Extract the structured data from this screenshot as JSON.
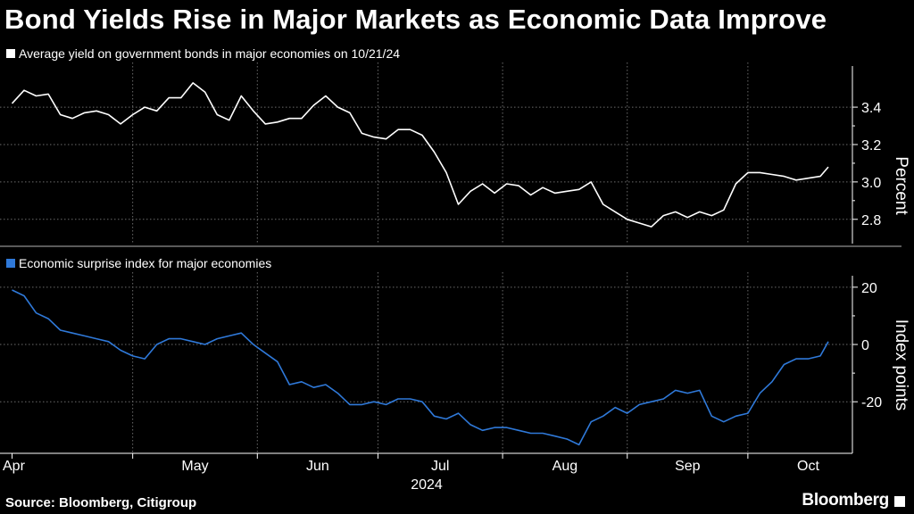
{
  "chart_data": [
    {
      "type": "line",
      "title": "Bond Yields Rise in Major Markets as Economic Data Improve",
      "legend": "Average yield on government bonds in major economies on 10/21/24",
      "ylabel": "Percent",
      "ylim": [
        2.67,
        3.62
      ],
      "yticks": [
        2.8,
        3.0,
        3.2,
        3.4
      ],
      "ytick_labels": [
        "2.8",
        "3.0",
        "3.2",
        "3.4"
      ],
      "color": "#ffffff",
      "x": [
        "2024-04-01",
        "2024-04-04",
        "2024-04-07",
        "2024-04-10",
        "2024-04-13",
        "2024-04-16",
        "2024-04-19",
        "2024-04-22",
        "2024-04-25",
        "2024-04-28",
        "2024-05-01",
        "2024-05-04",
        "2024-05-07",
        "2024-05-10",
        "2024-05-13",
        "2024-05-16",
        "2024-05-19",
        "2024-05-22",
        "2024-05-25",
        "2024-05-28",
        "2024-05-31",
        "2024-06-03",
        "2024-06-06",
        "2024-06-09",
        "2024-06-12",
        "2024-06-15",
        "2024-06-18",
        "2024-06-21",
        "2024-06-24",
        "2024-06-27",
        "2024-06-30",
        "2024-07-03",
        "2024-07-06",
        "2024-07-09",
        "2024-07-12",
        "2024-07-15",
        "2024-07-18",
        "2024-07-21",
        "2024-07-24",
        "2024-07-27",
        "2024-07-30",
        "2024-08-02",
        "2024-08-05",
        "2024-08-08",
        "2024-08-11",
        "2024-08-14",
        "2024-08-17",
        "2024-08-20",
        "2024-08-23",
        "2024-08-26",
        "2024-08-29",
        "2024-09-01",
        "2024-09-04",
        "2024-09-07",
        "2024-09-10",
        "2024-09-13",
        "2024-09-16",
        "2024-09-19",
        "2024-09-22",
        "2024-09-25",
        "2024-09-28",
        "2024-10-01",
        "2024-10-04",
        "2024-10-07",
        "2024-10-10",
        "2024-10-13",
        "2024-10-16",
        "2024-10-19",
        "2024-10-21"
      ],
      "values": [
        3.42,
        3.49,
        3.46,
        3.47,
        3.36,
        3.34,
        3.37,
        3.38,
        3.36,
        3.31,
        3.36,
        3.4,
        3.38,
        3.45,
        3.45,
        3.53,
        3.48,
        3.36,
        3.33,
        3.46,
        3.38,
        3.31,
        3.32,
        3.34,
        3.34,
        3.41,
        3.46,
        3.4,
        3.37,
        3.26,
        3.24,
        3.23,
        3.28,
        3.28,
        3.25,
        3.16,
        3.05,
        2.88,
        2.95,
        2.99,
        2.94,
        2.99,
        2.98,
        2.93,
        2.97,
        2.94,
        2.95,
        2.96,
        3.0,
        2.88,
        2.84,
        2.8,
        2.78,
        2.76,
        2.82,
        2.84,
        2.81,
        2.84,
        2.82,
        2.85,
        2.99,
        3.05,
        3.05,
        3.04,
        3.03,
        3.01,
        3.02,
        3.03,
        3.08
      ]
    },
    {
      "type": "line",
      "legend": "Economic surprise index for major economies",
      "ylabel": "Index points",
      "ylim": [
        -38,
        24
      ],
      "yticks": [
        -20,
        0,
        20
      ],
      "ytick_labels": [
        "-20",
        "0",
        "20"
      ],
      "color": "#2f79d9",
      "x": [
        "2024-04-01",
        "2024-04-04",
        "2024-04-07",
        "2024-04-10",
        "2024-04-13",
        "2024-04-16",
        "2024-04-19",
        "2024-04-22",
        "2024-04-25",
        "2024-04-28",
        "2024-05-01",
        "2024-05-04",
        "2024-05-07",
        "2024-05-10",
        "2024-05-13",
        "2024-05-16",
        "2024-05-19",
        "2024-05-22",
        "2024-05-25",
        "2024-05-28",
        "2024-05-31",
        "2024-06-03",
        "2024-06-06",
        "2024-06-09",
        "2024-06-12",
        "2024-06-15",
        "2024-06-18",
        "2024-06-21",
        "2024-06-24",
        "2024-06-27",
        "2024-06-30",
        "2024-07-03",
        "2024-07-06",
        "2024-07-09",
        "2024-07-12",
        "2024-07-15",
        "2024-07-18",
        "2024-07-21",
        "2024-07-24",
        "2024-07-27",
        "2024-07-30",
        "2024-08-02",
        "2024-08-05",
        "2024-08-08",
        "2024-08-11",
        "2024-08-14",
        "2024-08-17",
        "2024-08-20",
        "2024-08-23",
        "2024-08-26",
        "2024-08-29",
        "2024-09-01",
        "2024-09-04",
        "2024-09-07",
        "2024-09-10",
        "2024-09-13",
        "2024-09-16",
        "2024-09-19",
        "2024-09-22",
        "2024-09-25",
        "2024-09-28",
        "2024-10-01",
        "2024-10-04",
        "2024-10-07",
        "2024-10-10",
        "2024-10-13",
        "2024-10-16",
        "2024-10-19",
        "2024-10-21"
      ],
      "values": [
        19,
        17,
        11,
        9,
        5,
        4,
        3,
        2,
        1,
        -2,
        -4,
        -5,
        0,
        2,
        2,
        1,
        0,
        2,
        3,
        4,
        0,
        -3,
        -6,
        -14,
        -13,
        -15,
        -14,
        -17,
        -21,
        -21,
        -20,
        -21,
        -19,
        -19,
        -20,
        -25,
        -26,
        -24,
        -28,
        -30,
        -29,
        -29,
        -30,
        -31,
        -31,
        -32,
        -33,
        -35,
        -27,
        -25,
        -22,
        -24,
        -21,
        -20,
        -19,
        -16,
        -17,
        -16,
        -25,
        -27,
        -25,
        -24,
        -17,
        -13,
        -7,
        -5,
        -5,
        -4,
        1
      ]
    }
  ],
  "x_axis": {
    "month_labels": [
      "Apr",
      "May",
      "Jun",
      "Jul",
      "Aug",
      "Sep",
      "Oct"
    ],
    "month_ticks": [
      "2024-04-01",
      "2024-05-01",
      "2024-06-01",
      "2024-07-01",
      "2024-08-01",
      "2024-09-01",
      "2024-10-01"
    ],
    "year_label": "2024",
    "range": [
      "2024-03-29",
      "2024-10-27"
    ]
  },
  "footer": {
    "source": "Source: Bloomberg, Citigroup",
    "brand": "Bloomberg"
  }
}
